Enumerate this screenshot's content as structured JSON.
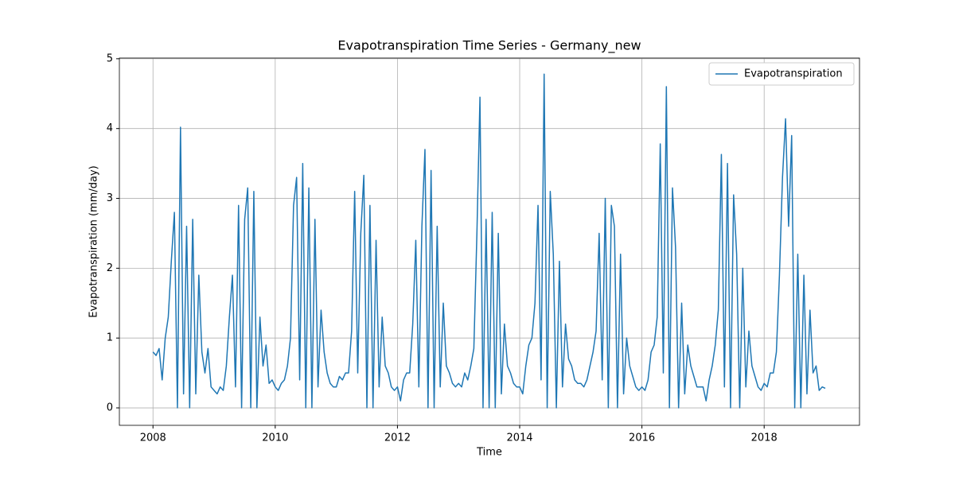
{
  "chart_data": {
    "type": "line",
    "title": "Evapotranspiration Time Series - Germany_new",
    "x_label": "Time",
    "y_label": "Evapotranspiration (mm/day)",
    "xlim": [
      2007.45,
      2019.56
    ],
    "ylim": [
      -0.25,
      5.01
    ],
    "xticks": [
      2008,
      2010,
      2012,
      2014,
      2016,
      2018
    ],
    "yticks": [
      0,
      1,
      2,
      3,
      4,
      5
    ],
    "grid": true,
    "legend": "upper right",
    "x": [
      2008.0,
      2008.05,
      2008.1,
      2008.15,
      2008.2,
      2008.25,
      2008.3,
      2008.35,
      2008.4,
      2008.45,
      2008.5,
      2008.55,
      2008.6,
      2008.65,
      2008.7,
      2008.75,
      2008.8,
      2008.85,
      2008.9,
      2008.95,
      2009.0,
      2009.05,
      2009.1,
      2009.15,
      2009.2,
      2009.25,
      2009.3,
      2009.35,
      2009.4,
      2009.45,
      2009.5,
      2009.55,
      2009.6,
      2009.65,
      2009.7,
      2009.75,
      2009.8,
      2009.85,
      2009.9,
      2009.95,
      2010.0,
      2010.05,
      2010.1,
      2010.15,
      2010.2,
      2010.25,
      2010.3,
      2010.35,
      2010.4,
      2010.45,
      2010.5,
      2010.55,
      2010.6,
      2010.65,
      2010.7,
      2010.75,
      2010.8,
      2010.85,
      2010.9,
      2010.95,
      2011.0,
      2011.05,
      2011.1,
      2011.15,
      2011.2,
      2011.25,
      2011.3,
      2011.35,
      2011.4,
      2011.45,
      2011.5,
      2011.55,
      2011.6,
      2011.65,
      2011.7,
      2011.75,
      2011.8,
      2011.85,
      2011.9,
      2011.95,
      2012.0,
      2012.05,
      2012.1,
      2012.15,
      2012.2,
      2012.25,
      2012.3,
      2012.35,
      2012.4,
      2012.45,
      2012.5,
      2012.55,
      2012.6,
      2012.65,
      2012.7,
      2012.75,
      2012.8,
      2012.85,
      2012.9,
      2012.95,
      2013.0,
      2013.05,
      2013.1,
      2013.15,
      2013.2,
      2013.25,
      2013.3,
      2013.35,
      2013.4,
      2013.45,
      2013.5,
      2013.55,
      2013.6,
      2013.65,
      2013.7,
      2013.75,
      2013.8,
      2013.85,
      2013.9,
      2013.95,
      2014.0,
      2014.05,
      2014.1,
      2014.15,
      2014.2,
      2014.25,
      2014.3,
      2014.35,
      2014.4,
      2014.45,
      2014.5,
      2014.55,
      2014.6,
      2014.65,
      2014.7,
      2014.75,
      2014.8,
      2014.85,
      2014.9,
      2014.95,
      2015.0,
      2015.05,
      2015.1,
      2015.15,
      2015.2,
      2015.25,
      2015.3,
      2015.35,
      2015.4,
      2015.45,
      2015.5,
      2015.55,
      2015.6,
      2015.65,
      2015.7,
      2015.75,
      2015.8,
      2015.85,
      2015.9,
      2015.95,
      2016.0,
      2016.05,
      2016.1,
      2016.15,
      2016.2,
      2016.25,
      2016.3,
      2016.35,
      2016.4,
      2016.45,
      2016.5,
      2016.55,
      2016.6,
      2016.65,
      2016.7,
      2016.75,
      2016.8,
      2016.85,
      2016.9,
      2016.95,
      2017.0,
      2017.05,
      2017.1,
      2017.15,
      2017.2,
      2017.25,
      2017.3,
      2017.35,
      2017.4,
      2017.45,
      2017.5,
      2017.55,
      2017.6,
      2017.65,
      2017.7,
      2017.75,
      2017.8,
      2017.85,
      2017.9,
      2017.95,
      2018.0,
      2018.05,
      2018.1,
      2018.15,
      2018.2,
      2018.25,
      2018.3,
      2018.35,
      2018.4,
      2018.45,
      2018.5,
      2018.55,
      2018.6,
      2018.65,
      2018.7,
      2018.75,
      2018.8,
      2018.85,
      2018.9,
      2018.95,
      2019.0
    ],
    "series": [
      {
        "name": "Evapotranspiration",
        "color": "#1f77b4",
        "values": [
          0.8,
          0.75,
          0.85,
          0.4,
          1.0,
          1.3,
          2.1,
          2.8,
          0,
          4.02,
          0.2,
          2.6,
          0,
          2.7,
          0.2,
          1.9,
          0.8,
          0.5,
          0.85,
          0.3,
          0.25,
          0.2,
          0.3,
          0.25,
          0.6,
          1.3,
          1.9,
          0.3,
          2.9,
          0,
          2.7,
          3.15,
          0,
          3.1,
          0,
          1.3,
          0.6,
          0.9,
          0.35,
          0.4,
          0.3,
          0.25,
          0.35,
          0.4,
          0.6,
          1.0,
          2.9,
          3.3,
          0.4,
          3.5,
          0,
          3.15,
          0,
          2.7,
          0.3,
          1.4,
          0.8,
          0.5,
          0.35,
          0.3,
          0.3,
          0.45,
          0.4,
          0.5,
          0.5,
          1.1,
          3.1,
          0.5,
          2.5,
          3.33,
          0,
          2.9,
          0,
          2.4,
          0.3,
          1.3,
          0.6,
          0.5,
          0.3,
          0.25,
          0.3,
          0.1,
          0.4,
          0.5,
          0.5,
          1.2,
          2.4,
          0.3,
          2.6,
          3.7,
          0,
          3.4,
          0,
          2.6,
          0.3,
          1.5,
          0.6,
          0.5,
          0.35,
          0.3,
          0.35,
          0.3,
          0.5,
          0.4,
          0.6,
          0.85,
          2.5,
          4.45,
          0,
          2.7,
          0,
          2.8,
          0,
          2.5,
          0.2,
          1.2,
          0.6,
          0.5,
          0.35,
          0.3,
          0.3,
          0.2,
          0.6,
          0.9,
          1.0,
          1.5,
          2.9,
          0.4,
          4.78,
          0,
          3.1,
          2.2,
          0,
          2.1,
          0.3,
          1.2,
          0.7,
          0.6,
          0.4,
          0.35,
          0.35,
          0.3,
          0.4,
          0.6,
          0.8,
          1.1,
          2.5,
          0.4,
          3.0,
          0,
          2.9,
          2.6,
          0,
          2.2,
          0.2,
          1.0,
          0.6,
          0.45,
          0.3,
          0.25,
          0.3,
          0.25,
          0.4,
          0.8,
          0.9,
          1.3,
          3.78,
          0.5,
          4.6,
          0,
          3.15,
          2.3,
          0,
          1.5,
          0.2,
          0.9,
          0.6,
          0.45,
          0.3,
          0.3,
          0.3,
          0.1,
          0.4,
          0.6,
          0.9,
          1.4,
          3.63,
          0.3,
          3.5,
          0,
          3.05,
          2.2,
          0,
          2.0,
          0.3,
          1.1,
          0.6,
          0.45,
          0.3,
          0.25,
          0.35,
          0.3,
          0.5,
          0.5,
          0.8,
          1.9,
          3.3,
          4.14,
          2.6,
          3.9,
          0,
          2.2,
          0,
          1.9,
          0.2,
          1.4,
          0.5,
          0.6,
          0.25,
          0.3,
          0.28
        ]
      }
    ]
  }
}
